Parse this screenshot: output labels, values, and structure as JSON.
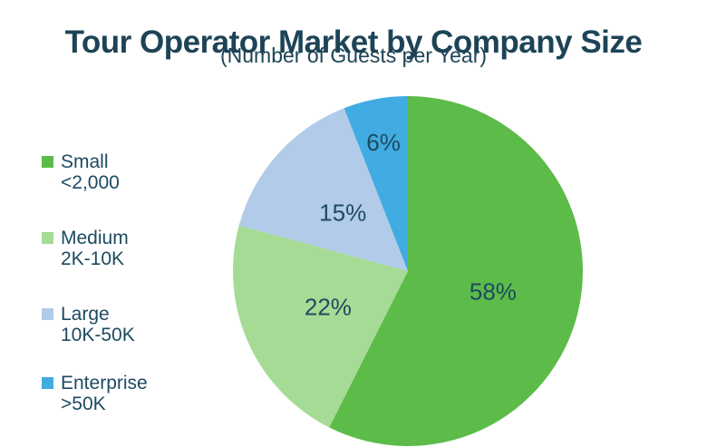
{
  "header": {
    "title": "Tour Operator Market by Company Size",
    "subtitle": "(Number of Guests per Year)"
  },
  "colors": {
    "background": "#FFFFFF",
    "title_text": "#1D4456",
    "body_text": "#1E4A61"
  },
  "legend": {
    "position": "left",
    "items": [
      {
        "label_line1": "Small",
        "label_line2": "<2,000",
        "color": "#5CBB49"
      },
      {
        "label_line1": "Medium",
        "label_line2": "2K-10K",
        "color": "#A6DB95"
      },
      {
        "label_line1": "Large",
        "label_line2": "10K-50K",
        "color": "#B2CBE9"
      },
      {
        "label_line1": "Enterprise",
        "label_line2": ">50K",
        "color": "#41ACE1"
      }
    ]
  },
  "chart_data": {
    "type": "pie",
    "title": "Tour Operator Market by Company Size",
    "subtitle": "(Number of Guests per Year)",
    "categories": [
      "Small <2,000",
      "Medium 2K-10K",
      "Large 10K-50K",
      "Enterprise >50K"
    ],
    "values": [
      58,
      22,
      15,
      6
    ],
    "labels": [
      "58%",
      "22%",
      "15%",
      "6%"
    ],
    "unit": "percent",
    "colors": [
      "#5CBB49",
      "#A6DB95",
      "#B2CBE9",
      "#41ACE1"
    ],
    "start_angle_deg": 0,
    "direction": "clockwise",
    "legend_position": "left",
    "grid": false
  }
}
